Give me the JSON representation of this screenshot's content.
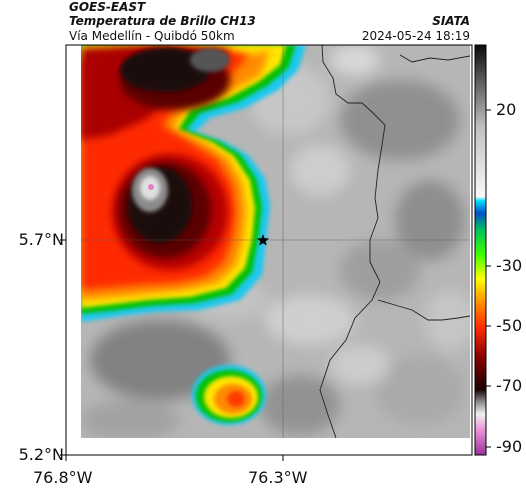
{
  "header": {
    "satellite": "GOES-EAST",
    "product": "Temperatura de Brillo CH13",
    "route": "Vía Medellín - Quibdó 50km",
    "org": "SIATA",
    "datetime": "2024-05-24 18:19"
  },
  "map": {
    "lat_ticks": [
      "5.7°N",
      "5.2°N"
    ],
    "lon_ticks": [
      "76.8°W",
      "76.3°W"
    ],
    "marker": "star-icon"
  },
  "colorbar": {
    "ticks": [
      "20",
      "-30",
      "-50",
      "-70",
      "-90"
    ],
    "unit_range": [
      -95,
      45
    ]
  },
  "colors": {
    "background_gray": "#b9b9b9",
    "deep_core": "#e37fc5"
  }
}
